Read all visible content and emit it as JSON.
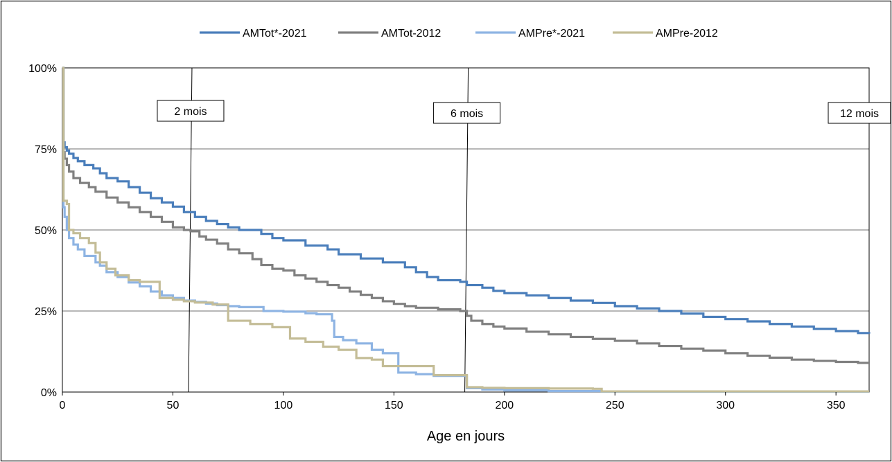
{
  "chart_data": {
    "type": "line",
    "title": "",
    "xlabel": "Age en jours",
    "ylabel": "",
    "xlim": [
      0,
      365
    ],
    "ylim": [
      0,
      1
    ],
    "x_ticks": [
      "0",
      "50",
      "100",
      "150",
      "200",
      "250",
      "300",
      "350"
    ],
    "y_ticks": [
      "0%",
      "25%",
      "50%",
      "75%",
      "100%"
    ],
    "y_grid": true,
    "legend_position": "top",
    "markers": [
      {
        "label": "2 mois",
        "x": 58
      },
      {
        "label": "6 mois",
        "x": 183
      },
      {
        "label": "12 mois",
        "x": 365
      }
    ],
    "series": [
      {
        "name": "AMTot*-2021",
        "color": "#4a7ebb",
        "step": true,
        "points": [
          [
            0,
            1
          ],
          [
            0.5,
            0.77
          ],
          [
            1,
            0.755
          ],
          [
            2,
            0.745
          ],
          [
            3,
            0.735
          ],
          [
            5,
            0.722
          ],
          [
            7,
            0.712
          ],
          [
            10,
            0.7
          ],
          [
            14,
            0.69
          ],
          [
            17,
            0.675
          ],
          [
            20,
            0.66
          ],
          [
            25,
            0.65
          ],
          [
            30,
            0.632
          ],
          [
            35,
            0.615
          ],
          [
            40,
            0.598
          ],
          [
            45,
            0.585
          ],
          [
            50,
            0.572
          ],
          [
            55,
            0.555
          ],
          [
            60,
            0.54
          ],
          [
            65,
            0.528
          ],
          [
            70,
            0.518
          ],
          [
            75,
            0.508
          ],
          [
            80,
            0.5
          ],
          [
            90,
            0.488
          ],
          [
            95,
            0.475
          ],
          [
            100,
            0.468
          ],
          [
            110,
            0.452
          ],
          [
            120,
            0.44
          ],
          [
            125,
            0.425
          ],
          [
            135,
            0.412
          ],
          [
            145,
            0.4
          ],
          [
            155,
            0.385
          ],
          [
            160,
            0.37
          ],
          [
            165,
            0.355
          ],
          [
            170,
            0.345
          ],
          [
            180,
            0.34
          ],
          [
            183,
            0.33
          ],
          [
            190,
            0.322
          ],
          [
            195,
            0.312
          ],
          [
            200,
            0.305
          ],
          [
            210,
            0.298
          ],
          [
            220,
            0.29
          ],
          [
            230,
            0.282
          ],
          [
            240,
            0.275
          ],
          [
            250,
            0.265
          ],
          [
            260,
            0.258
          ],
          [
            270,
            0.25
          ],
          [
            280,
            0.242
          ],
          [
            290,
            0.232
          ],
          [
            300,
            0.225
          ],
          [
            310,
            0.218
          ],
          [
            320,
            0.21
          ],
          [
            330,
            0.202
          ],
          [
            340,
            0.195
          ],
          [
            350,
            0.188
          ],
          [
            360,
            0.182
          ],
          [
            365,
            0.18
          ]
        ]
      },
      {
        "name": "AMTot-2012",
        "color": "#808080",
        "step": true,
        "points": [
          [
            0,
            1
          ],
          [
            0.5,
            0.74
          ],
          [
            1,
            0.72
          ],
          [
            2,
            0.7
          ],
          [
            3,
            0.68
          ],
          [
            5,
            0.66
          ],
          [
            8,
            0.645
          ],
          [
            12,
            0.632
          ],
          [
            15,
            0.618
          ],
          [
            20,
            0.6
          ],
          [
            25,
            0.585
          ],
          [
            30,
            0.57
          ],
          [
            35,
            0.555
          ],
          [
            40,
            0.54
          ],
          [
            45,
            0.525
          ],
          [
            50,
            0.508
          ],
          [
            55,
            0.5
          ],
          [
            58,
            0.496
          ],
          [
            62,
            0.48
          ],
          [
            65,
            0.47
          ],
          [
            70,
            0.458
          ],
          [
            75,
            0.44
          ],
          [
            80,
            0.428
          ],
          [
            86,
            0.41
          ],
          [
            90,
            0.392
          ],
          [
            95,
            0.38
          ],
          [
            100,
            0.375
          ],
          [
            105,
            0.36
          ],
          [
            110,
            0.35
          ],
          [
            115,
            0.34
          ],
          [
            120,
            0.33
          ],
          [
            125,
            0.322
          ],
          [
            130,
            0.31
          ],
          [
            135,
            0.3
          ],
          [
            140,
            0.29
          ],
          [
            145,
            0.28
          ],
          [
            150,
            0.272
          ],
          [
            155,
            0.265
          ],
          [
            160,
            0.26
          ],
          [
            170,
            0.255
          ],
          [
            180,
            0.25
          ],
          [
            183,
            0.235
          ],
          [
            185,
            0.22
          ],
          [
            190,
            0.21
          ],
          [
            195,
            0.202
          ],
          [
            200,
            0.196
          ],
          [
            210,
            0.186
          ],
          [
            220,
            0.178
          ],
          [
            230,
            0.17
          ],
          [
            240,
            0.164
          ],
          [
            250,
            0.158
          ],
          [
            260,
            0.15
          ],
          [
            270,
            0.142
          ],
          [
            280,
            0.134
          ],
          [
            290,
            0.128
          ],
          [
            300,
            0.12
          ],
          [
            310,
            0.112
          ],
          [
            320,
            0.106
          ],
          [
            330,
            0.1
          ],
          [
            340,
            0.096
          ],
          [
            350,
            0.093
          ],
          [
            360,
            0.09
          ],
          [
            365,
            0.09
          ]
        ]
      },
      {
        "name": "AMPre*-2021",
        "color": "#8eb4e3",
        "step": true,
        "points": [
          [
            0,
            1
          ],
          [
            0.5,
            0.57
          ],
          [
            1,
            0.54
          ],
          [
            2,
            0.5
          ],
          [
            3,
            0.475
          ],
          [
            5,
            0.455
          ],
          [
            7,
            0.44
          ],
          [
            10,
            0.42
          ],
          [
            15,
            0.4
          ],
          [
            17,
            0.39
          ],
          [
            20,
            0.37
          ],
          [
            25,
            0.355
          ],
          [
            30,
            0.338
          ],
          [
            35,
            0.326
          ],
          [
            40,
            0.31
          ],
          [
            45,
            0.298
          ],
          [
            50,
            0.29
          ],
          [
            55,
            0.282
          ],
          [
            60,
            0.278
          ],
          [
            65,
            0.273
          ],
          [
            70,
            0.268
          ],
          [
            75,
            0.265
          ],
          [
            80,
            0.262
          ],
          [
            91,
            0.25
          ],
          [
            100,
            0.248
          ],
          [
            110,
            0.243
          ],
          [
            115,
            0.24
          ],
          [
            122,
            0.22
          ],
          [
            123,
            0.17
          ],
          [
            127,
            0.16
          ],
          [
            133,
            0.15
          ],
          [
            140,
            0.13
          ],
          [
            145,
            0.12
          ],
          [
            152,
            0.06
          ],
          [
            160,
            0.055
          ],
          [
            168,
            0.05
          ],
          [
            183,
            0.012
          ],
          [
            190,
            0.008
          ],
          [
            200,
            0.005
          ],
          [
            220,
            0.003
          ],
          [
            244,
            0.001
          ],
          [
            365,
            0.001
          ]
        ]
      },
      {
        "name": "AMPre-2012",
        "color": "#c4bd97",
        "step": true,
        "points": [
          [
            0,
            1
          ],
          [
            0.5,
            0.59
          ],
          [
            2,
            0.58
          ],
          [
            3,
            0.5
          ],
          [
            5,
            0.49
          ],
          [
            8,
            0.475
          ],
          [
            12,
            0.46
          ],
          [
            15,
            0.43
          ],
          [
            17,
            0.4
          ],
          [
            20,
            0.38
          ],
          [
            24,
            0.36
          ],
          [
            30,
            0.345
          ],
          [
            35,
            0.34
          ],
          [
            44,
            0.29
          ],
          [
            50,
            0.285
          ],
          [
            55,
            0.28
          ],
          [
            60,
            0.276
          ],
          [
            68,
            0.27
          ],
          [
            75,
            0.22
          ],
          [
            85,
            0.21
          ],
          [
            95,
            0.2
          ],
          [
            103,
            0.165
          ],
          [
            110,
            0.155
          ],
          [
            118,
            0.14
          ],
          [
            125,
            0.13
          ],
          [
            133,
            0.105
          ],
          [
            140,
            0.1
          ],
          [
            145,
            0.08
          ],
          [
            160,
            0.08
          ],
          [
            168,
            0.052
          ],
          [
            183,
            0.015
          ],
          [
            190,
            0.013
          ],
          [
            200,
            0.012
          ],
          [
            210,
            0.012
          ],
          [
            220,
            0.011
          ],
          [
            240,
            0.01
          ],
          [
            244,
            0.002
          ],
          [
            365,
            0.002
          ]
        ]
      }
    ]
  }
}
